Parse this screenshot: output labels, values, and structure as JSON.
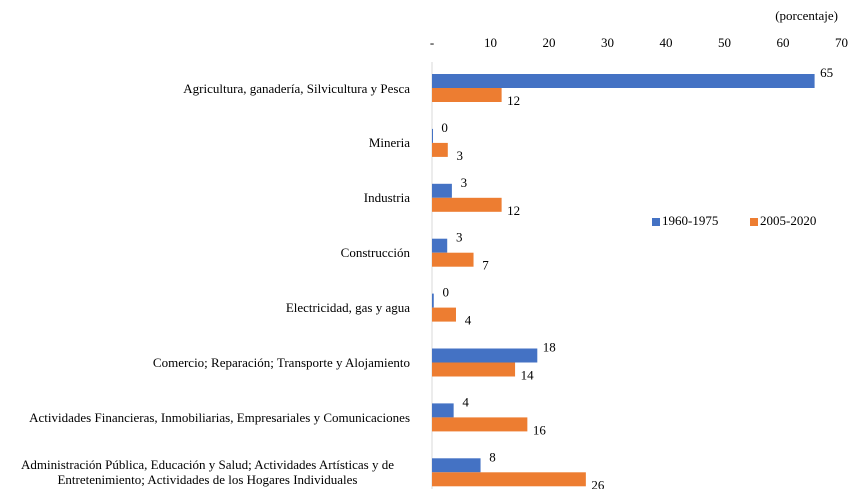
{
  "chart_data": {
    "type": "barh",
    "unit_label": "(porcentaje)",
    "categories": [
      "Agricultura, ganadería, Silvicultura y Pesca",
      "Mineria",
      "Industria",
      "Construcción",
      "Electricidad, gas y agua",
      "Comercio; Reparación; Transporte y Alojamiento",
      "Actividades Financieras, Inmobiliarias, Empresariales y Comunicaciones",
      "Administración Pública, Educación y Salud; Actividades Artísticas y de Entretenimiento; Actividades de los Hogares Individuales"
    ],
    "series": [
      {
        "name": "1960-1975",
        "color": "#4472c4",
        "values": [
          65.4,
          0.1,
          3.4,
          2.6,
          0.3,
          18,
          3.7,
          8.3
        ],
        "value_labels": [
          "65",
          "0",
          "3",
          "3",
          "0",
          "18",
          "4",
          "8"
        ]
      },
      {
        "name": "2005-2020",
        "color": "#ed7d31",
        "values": [
          11.9,
          2.7,
          11.9,
          7.1,
          4.1,
          14.2,
          16.3,
          26.3
        ],
        "value_labels": [
          "12",
          "3",
          "12",
          "7",
          "4",
          "14",
          "16",
          "26"
        ]
      }
    ],
    "xlim": [
      0,
      70
    ],
    "xticks": [
      {
        "value": 0,
        "label": "-"
      },
      10,
      20,
      30,
      40,
      50,
      60,
      70
    ],
    "grid": false,
    "legend": "right"
  }
}
